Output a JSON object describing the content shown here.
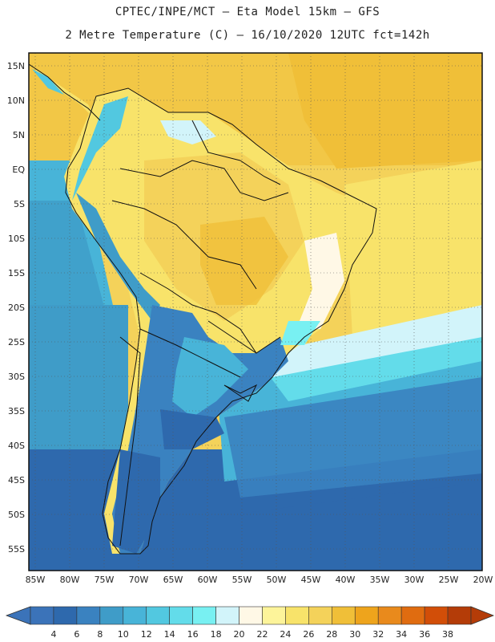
{
  "header": {
    "title_line1": "CPTEC/INPE/MCT –  Eta Model 15km – GFS",
    "title_line2": "2 Metre Temperature (C) – 16/10/2020 12UTC fct=142h"
  },
  "map": {
    "lon_ticks": [
      "85W",
      "80W",
      "75W",
      "70W",
      "65W",
      "60W",
      "55W",
      "50W",
      "45W",
      "40W",
      "35W",
      "30W",
      "25W",
      "20W"
    ],
    "lat_ticks": [
      "15N",
      "10N",
      "5N",
      "EQ",
      "5S",
      "10S",
      "15S",
      "20S",
      "25S",
      "30S",
      "35S",
      "40S",
      "45S",
      "50S",
      "55S"
    ],
    "lon_range": [
      -85,
      -20
    ],
    "lat_range": [
      17,
      -58
    ],
    "gridlines": "dotted"
  },
  "colorbar": {
    "labels": [
      "4",
      "6",
      "8",
      "10",
      "12",
      "14",
      "16",
      "18",
      "20",
      "22",
      "24",
      "26",
      "28",
      "30",
      "32",
      "34",
      "36",
      "38"
    ],
    "colors": [
      "#3b73b9",
      "#2e69ad",
      "#3a82c0",
      "#3f9cc8",
      "#48b4d8",
      "#52c8e0",
      "#63dcea",
      "#78f0f2",
      "#d2f4fa",
      "#fff8e6",
      "#fdf49a",
      "#f8e36a",
      "#f4d25a",
      "#f0bf38",
      "#eea41c",
      "#e98a1c",
      "#e06c10",
      "#d24e08",
      "#b43c08"
    ],
    "low_arrow_color": "#3b73b9",
    "high_arrow_color": "#b43c08"
  }
}
